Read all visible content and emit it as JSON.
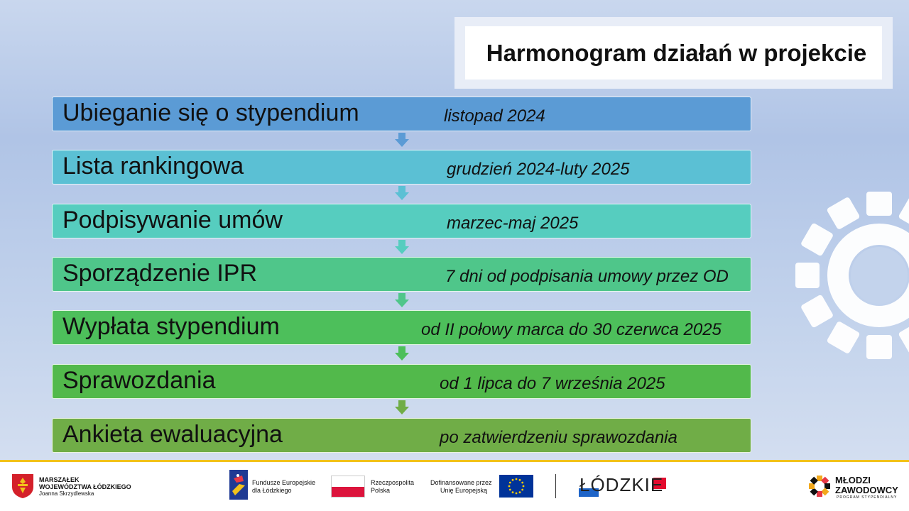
{
  "slide": {
    "title": "Harmonogram działań w projekcie",
    "colors": {
      "step1": "#5b9bd5",
      "step2": "#5bc0d4",
      "step3": "#56cdbf",
      "step4": "#4fc68a",
      "step5": "#4dbf5b",
      "step6": "#52b94b",
      "step7": "#70ad47",
      "accent_line": "#f2c21b"
    },
    "steps": [
      {
        "label": "Ubieganie się o stypendium",
        "date": "listopad 2024"
      },
      {
        "label": "Lista rankingowa",
        "date": "grudzień 2024-luty 2025"
      },
      {
        "label": "Podpisywanie umów",
        "date": "marzec-maj 2025"
      },
      {
        "label": "Sporządzenie IPR",
        "date": "7 dni od podpisania umowy przez OD"
      },
      {
        "label": "Wypłata stypendium",
        "date": "od II połowy marca do 30 czerwca 2025"
      },
      {
        "label": "Sprawozdania",
        "date": "od 1 lipca do 7 września 2025"
      },
      {
        "label": "Ankieta ewaluacyjna",
        "date": "po zatwierdzeniu sprawozdania"
      }
    ]
  },
  "footer": {
    "marszalek": {
      "line1": "MARSZAŁEK",
      "line2": "WOJEWÓDZTWA ŁÓDZKIEGO",
      "line3": "Joanna Skrzydlewska"
    },
    "fe": {
      "line1": "Fundusze Europejskie",
      "line2": "dla Łódzkiego"
    },
    "rp": {
      "line1": "Rzeczpospolita",
      "line2": "Polska"
    },
    "eu": {
      "line1": "Dofinansowane przez",
      "line2": "Unię Europejską"
    },
    "lodzkie": "ŁÓDZKIE",
    "mz": {
      "line1": "MŁODZI",
      "line2": "ZAWODOWCY",
      "line3": "PROGRAM STYPENDIALNY"
    }
  }
}
